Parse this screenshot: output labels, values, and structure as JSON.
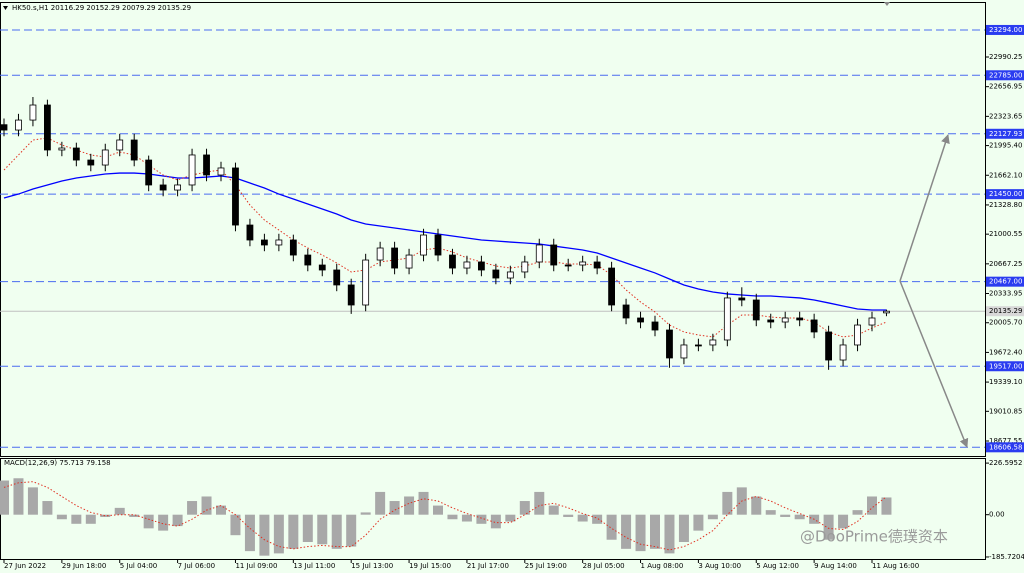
{
  "chart_data": [
    {
      "type": "candlestick",
      "title": "HK50.s,H1  20116.29 20152.29 20079.29 20135.29",
      "categories": [
        "27 Jun 2022",
        null,
        null,
        null,
        "29 Jun 18:00",
        null,
        null,
        null,
        "5 Jul 04:00",
        null,
        null,
        null,
        "7 Jul 06:00",
        null,
        null,
        null,
        "11 Jul 09:00",
        null,
        null,
        null,
        "13 Jul 11:00",
        null,
        null,
        null,
        "15 Jul 13:00",
        null,
        null,
        null,
        "19 Jul 15:00",
        null,
        null,
        null,
        "21 Jul 17:00",
        null,
        null,
        null,
        "25 Jul 19:00",
        null,
        null,
        null,
        "28 Jul 05:00",
        null,
        null,
        null,
        "1 Aug 08:00",
        null,
        null,
        null,
        "3 Aug 10:00",
        null,
        null,
        null,
        "5 Aug 12:00",
        null,
        null,
        null,
        "9 Aug 14:00",
        null,
        null,
        null,
        "11 Aug 16:00",
        null
      ],
      "open": [
        22230,
        22170,
        22282,
        22451,
        21946,
        21968,
        21833,
        21777,
        21946,
        22058,
        21833,
        21553,
        21496,
        21553,
        21890,
        21665,
        21744,
        21103,
        20935,
        20879,
        20935,
        20766,
        20654,
        20598,
        20430,
        20205,
        20710,
        20845,
        20620,
        20766,
        20991,
        20766,
        20620,
        20688,
        20598,
        20508,
        20576,
        20688,
        20879,
        20654,
        20654,
        20688,
        20620,
        20205,
        20059,
        20014,
        19924,
        19610,
        19756,
        19756,
        19812,
        20284,
        20261,
        20037,
        20014,
        20059,
        20037,
        19902,
        19587,
        19756,
        19980,
        20116.29
      ],
      "high": [
        22300,
        22352,
        22541,
        22511,
        22038,
        22028,
        21903,
        22016,
        22128,
        22128,
        21883,
        21623,
        21623,
        21960,
        21960,
        21814,
        21804,
        21173,
        21005,
        21005,
        20995,
        20836,
        20724,
        20668,
        20500,
        20780,
        20915,
        20915,
        20836,
        21061,
        21061,
        20836,
        20758,
        20758,
        20668,
        20646,
        20758,
        20949,
        20949,
        20724,
        20758,
        20758,
        20690,
        20275,
        20129,
        20084,
        19994,
        19826,
        19826,
        19882,
        20354,
        20404,
        20331,
        20107,
        20129,
        20129,
        20107,
        19972,
        19826,
        20050,
        20129,
        20152.29
      ],
      "low": [
        22100,
        22100,
        22212,
        21876,
        21876,
        21763,
        21707,
        21707,
        21876,
        21763,
        21483,
        21426,
        21426,
        21483,
        21595,
        21595,
        21033,
        20865,
        20809,
        20809,
        20696,
        20584,
        20528,
        20360,
        20105,
        20135,
        20640,
        20550,
        20550,
        20696,
        20696,
        20550,
        20550,
        20528,
        20438,
        20438,
        20506,
        20618,
        20584,
        20584,
        20584,
        20550,
        20135,
        19989,
        19944,
        19854,
        19500,
        19540,
        19686,
        19686,
        19742,
        20191,
        19967,
        19944,
        19944,
        19967,
        19832,
        19477,
        19517,
        19686,
        19910,
        20079.29
      ],
      "close": [
        22170,
        22282,
        22451,
        21946,
        21968,
        21833,
        21777,
        21946,
        22058,
        21833,
        21553,
        21496,
        21553,
        21890,
        21665,
        21744,
        21103,
        20935,
        20879,
        20935,
        20766,
        20654,
        20598,
        20430,
        20205,
        20710,
        20845,
        20620,
        20766,
        20991,
        20766,
        20620,
        20688,
        20598,
        20508,
        20576,
        20688,
        20879,
        20654,
        20654,
        20688,
        20620,
        20205,
        20059,
        20014,
        19924,
        19610,
        19756,
        19756,
        19812,
        20284,
        20261,
        20037,
        20014,
        20059,
        20037,
        19902,
        19587,
        19756,
        19980,
        20059,
        20135.29
      ],
      "overlays": [
        {
          "color": "#0000ff",
          "dotted": false,
          "values": [
            21407,
            21451,
            21508,
            21553,
            21598,
            21631,
            21654,
            21676,
            21687,
            21687,
            21676,
            21654,
            21631,
            21631,
            21642,
            21654,
            21631,
            21575,
            21519,
            21451,
            21395,
            21339,
            21283,
            21227,
            21160,
            21115,
            21092,
            21070,
            21047,
            21025,
            21002,
            20980,
            20957,
            20935,
            20924,
            20912,
            20901,
            20890,
            20867,
            20845,
            20823,
            20789,
            20733,
            20677,
            20621,
            20565,
            20497,
            20430,
            20385,
            20351,
            20329,
            20317,
            20306,
            20306,
            20295,
            20284,
            20261,
            20228,
            20194,
            20160,
            20149,
            20149
          ]
        },
        {
          "color": "#e03020",
          "dotted": true,
          "values": [
            21721,
            21890,
            22058,
            22081,
            22002,
            21946,
            21890,
            21867,
            21923,
            21890,
            21777,
            21665,
            21609,
            21665,
            21699,
            21721,
            21553,
            21328,
            21160,
            21047,
            20935,
            20845,
            20766,
            20677,
            20576,
            20598,
            20688,
            20710,
            20733,
            20823,
            20845,
            20800,
            20733,
            20688,
            20643,
            20620,
            20643,
            20688,
            20688,
            20665,
            20665,
            20654,
            20542,
            20374,
            20239,
            20126,
            19980,
            19902,
            19868,
            19846,
            19980,
            20093,
            20093,
            20070,
            20059,
            20059,
            20014,
            19902,
            19846,
            19868,
            19947,
            20014
          ]
        }
      ],
      "ylim": [
        18509,
        23608
      ],
      "yticks": [
        22990.25,
        22656.95,
        22323.65,
        {
          "value": 21995.4,
          "label": "21995.40"
        },
        {
          "value": 21662.1,
          "label": "21662.10"
        },
        {
          "value": 21328.8,
          "label": "21328.80"
        },
        {
          "value": 21000.55,
          "label": "21000.55"
        },
        {
          "value": 20667.25,
          "label": "20667.25"
        },
        {
          "value": 20333.95,
          "label": "20333.95"
        },
        {
          "value": 20005.7,
          "label": "20005.70"
        },
        {
          "value": 19672.4,
          "label": "19672.40"
        },
        {
          "value": 19339.1,
          "label": "19339.10"
        },
        {
          "value": 19010.85,
          "label": "19010.85"
        },
        {
          "value": 18677.55,
          "label": "18677.55"
        }
      ],
      "levels": [
        {
          "value": 23294,
          "label": "23294.00"
        },
        {
          "value": 22785,
          "label": "22785.00"
        },
        22127.93,
        {
          "value": 21450,
          "label": "21450.00"
        },
        {
          "value": 20467,
          "label": "20467.00"
        },
        {
          "value": 19517,
          "label": "19517.00"
        },
        18606.58
      ],
      "last_price": 20135.29
    },
    {
      "type": "macd",
      "title": "MACD(12,26,9) 75.713 79.158",
      "histogram": [
        150,
        160,
        120,
        60,
        -20,
        -40,
        -40,
        -10,
        30,
        -10,
        -60,
        -70,
        -50,
        60,
        80,
        40,
        -90,
        -160,
        -180,
        -170,
        -150,
        -120,
        -130,
        -150,
        -140,
        10,
        100,
        60,
        80,
        100,
        40,
        -20,
        -30,
        -40,
        -60,
        -30,
        60,
        100,
        40,
        -10,
        -30,
        -40,
        -110,
        -150,
        -160,
        -150,
        -170,
        -120,
        -70,
        -20,
        100,
        120,
        80,
        20,
        -10,
        -20,
        -40,
        -110,
        -60,
        20,
        80,
        75.713
      ],
      "signal": [
        120,
        140,
        145,
        120,
        80,
        40,
        10,
        -5,
        0,
        0,
        -20,
        -40,
        -50,
        -20,
        20,
        40,
        0,
        -60,
        -110,
        -140,
        -150,
        -140,
        -135,
        -140,
        -140,
        -90,
        -20,
        20,
        50,
        70,
        60,
        30,
        5,
        -15,
        -35,
        -35,
        0,
        40,
        50,
        30,
        5,
        -15,
        -60,
        -100,
        -130,
        -140,
        -155,
        -140,
        -110,
        -70,
        0,
        60,
        80,
        60,
        30,
        5,
        -20,
        -60,
        -65,
        -30,
        30,
        79.158
      ],
      "ylim": [
        -199,
        249
      ],
      "yticks": [
        226.5952,
        {
          "value": 0,
          "label": "0.00"
        },
        -185.7204
      ]
    }
  ],
  "watermark": "@DooPrime德璞资本"
}
